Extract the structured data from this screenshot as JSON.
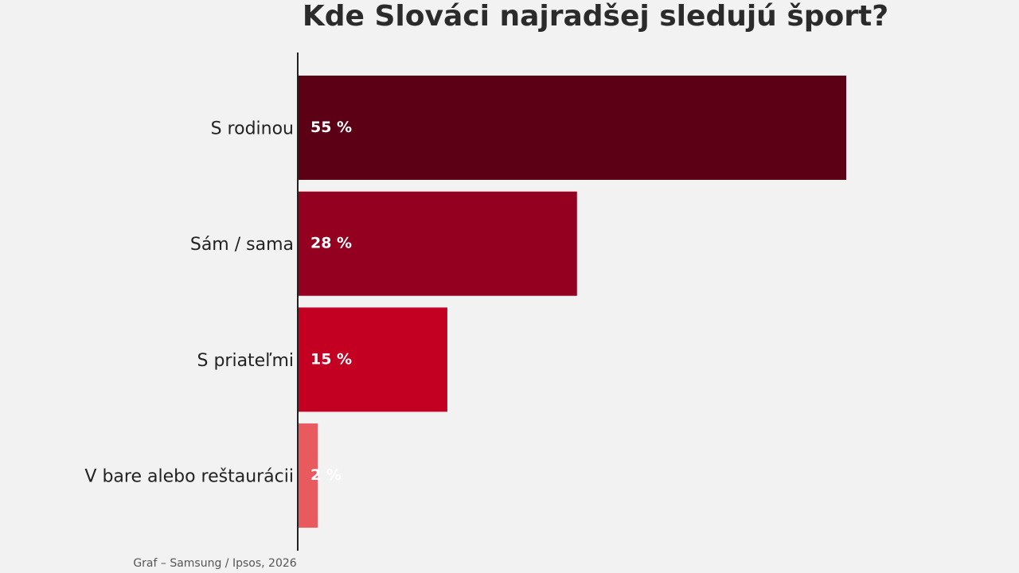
{
  "chart_data": {
    "type": "bar",
    "orientation": "horizontal",
    "title": "Kde Slováci najradšej sledujú šport?",
    "categories": [
      "S rodinou",
      "Sám / sama",
      "S priateľmi",
      "V bare alebo reštaurácii"
    ],
    "values": [
      55,
      28,
      15,
      2
    ],
    "value_labels": [
      "55 %",
      "28 %",
      "15 %",
      "2 %"
    ],
    "colors": [
      "#5c0015",
      "#940020",
      "#c30022",
      "#e85a5e"
    ],
    "source": "Graf – Samsung / Ipsos, 2026"
  }
}
